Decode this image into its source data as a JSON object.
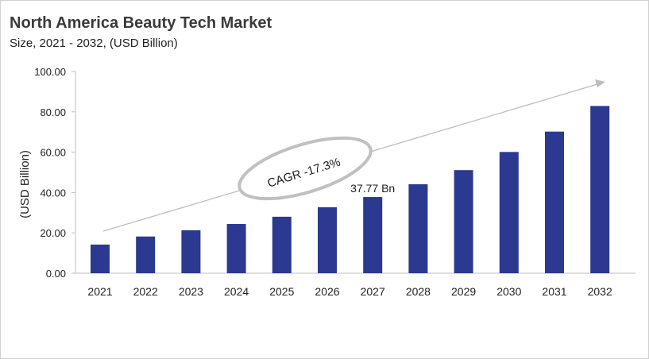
{
  "header": {
    "title": "North America Beauty Tech Market",
    "subtitle": "Size, 2021 - 2032, (USD Billion)"
  },
  "chart_data": {
    "type": "bar",
    "title": "North America Beauty Tech Market",
    "subtitle": "Size, 2021 - 2032, (USD Billion)",
    "xlabel": "",
    "ylabel": "(USD Billion)",
    "ylim": [
      0,
      100
    ],
    "yticks": [
      "0.00",
      "20.00",
      "40.00",
      "60.00",
      "80.00",
      "100.00"
    ],
    "categories": [
      "2021",
      "2022",
      "2023",
      "2024",
      "2025",
      "2026",
      "2027",
      "2028",
      "2029",
      "2030",
      "2031",
      "2032"
    ],
    "values": [
      14.2,
      18.2,
      21.3,
      24.4,
      28.0,
      32.7,
      37.77,
      44.1,
      51.1,
      60.1,
      70.2,
      82.9
    ],
    "bar_color": "#2b3990",
    "grid": false,
    "annotations": {
      "data_label": "37.77 Bn",
      "data_label_category": "2027",
      "cagr": "CAGR -17.3%"
    }
  }
}
